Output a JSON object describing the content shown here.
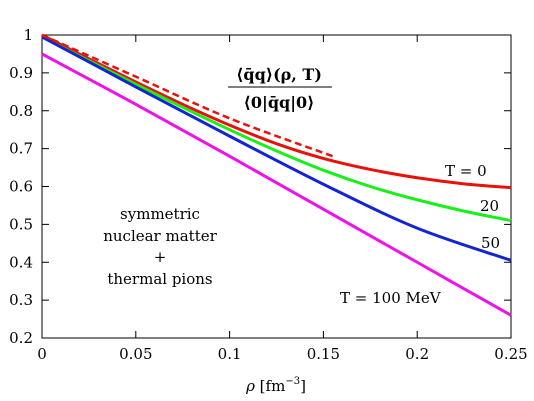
{
  "chart_data": {
    "type": "line",
    "xlim": [
      0,
      0.25
    ],
    "ylim": [
      0.2,
      1.0
    ],
    "x_ticks": [
      0,
      0.05,
      0.1,
      0.15,
      0.2,
      0.25
    ],
    "x_tick_labels": [
      "0",
      "0.05",
      "0.1",
      "0.15",
      "0.2",
      "0.25"
    ],
    "y_ticks": [
      0.2,
      0.3,
      0.4,
      0.5,
      0.6,
      0.7,
      0.8,
      0.9,
      1.0
    ],
    "y_tick_labels": [
      "0.2",
      "0.3",
      "0.4",
      "0.5",
      "0.6",
      "0.7",
      "0.8",
      "0.9",
      "1"
    ],
    "xlabel": {
      "rho": "ρ",
      "unit_open": " [fm",
      "unit_exp": "−3",
      "unit_close": "]"
    },
    "ratio_label": {
      "numerator": "⟨q̄q⟩(ρ, T)",
      "denominator": "⟨0|q̄q|0⟩"
    },
    "annotation": [
      "symmetric",
      "nuclear matter",
      "+",
      "thermal pions"
    ],
    "grid": false,
    "series": [
      {
        "name": "T = 0",
        "color": "#e8120c",
        "dash": "solid",
        "x": [
          0,
          0.025,
          0.05,
          0.075,
          0.1,
          0.125,
          0.15,
          0.175,
          0.2,
          0.225,
          0.25
        ],
        "y": [
          1.0,
          0.937,
          0.876,
          0.817,
          0.762,
          0.713,
          0.674,
          0.645,
          0.623,
          0.607,
          0.597
        ]
      },
      {
        "name": "20",
        "color": "#19f019",
        "dash": "solid",
        "x": [
          0,
          0.025,
          0.05,
          0.075,
          0.1,
          0.125,
          0.15,
          0.175,
          0.2,
          0.225,
          0.25
        ],
        "y": [
          0.995,
          0.932,
          0.87,
          0.809,
          0.75,
          0.694,
          0.643,
          0.6,
          0.565,
          0.535,
          0.51
        ]
      },
      {
        "name": "50",
        "color": "#1424d2",
        "dash": "solid",
        "x": [
          0,
          0.05,
          0.1,
          0.15,
          0.2,
          0.25
        ],
        "y": [
          0.995,
          0.863,
          0.733,
          0.606,
          0.49,
          0.405
        ]
      },
      {
        "name": "T = 100 MeV",
        "color": "#ee12e8",
        "dash": "solid",
        "x": [
          0,
          0.05,
          0.1,
          0.15,
          0.2,
          0.25
        ],
        "y": [
          0.95,
          0.817,
          0.68,
          0.54,
          0.4,
          0.26
        ]
      },
      {
        "name": "",
        "color": "#e8120c",
        "dash": "dashed",
        "x": [
          0,
          0.05,
          0.1,
          0.155
        ],
        "y": [
          1.0,
          0.89,
          0.78,
          0.68
        ]
      }
    ]
  }
}
